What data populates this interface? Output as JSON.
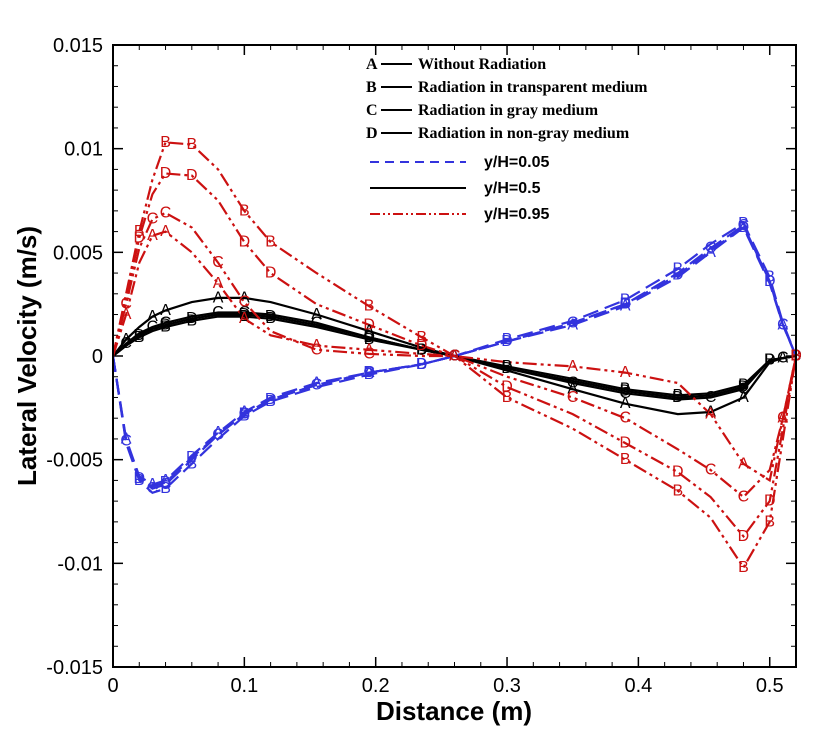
{
  "chart_data": {
    "type": "line",
    "xlabel": "Distance (m)",
    "ylabel": "Lateral Velocity (m/s)",
    "xlim": [
      0,
      0.52
    ],
    "ylim": [
      -0.015,
      0.015
    ],
    "x_ticks": [
      0,
      0.1,
      0.2,
      0.3,
      0.4,
      0.5
    ],
    "x_tick_labels": [
      "0",
      "0.1",
      "0.2",
      "0.3",
      "0.4",
      "0.5"
    ],
    "y_ticks": [
      -0.015,
      -0.01,
      -0.005,
      0,
      0.005,
      0.01,
      0.015
    ],
    "y_tick_labels": [
      "-0.015",
      "-0.01",
      "-0.005",
      "0",
      "0.005",
      "0.01",
      "0.015"
    ],
    "cases_legend": [
      {
        "marker": "A",
        "label": "Without Radiation"
      },
      {
        "marker": "B",
        "label": "Radiation in transparent medium"
      },
      {
        "marker": "C",
        "label": "Radiation in gray medium"
      },
      {
        "marker": "D",
        "label": "Radiation in non-gray medium"
      }
    ],
    "positions_legend": [
      {
        "label": "y/H=0.05",
        "color": "#3333dd",
        "dash": "dashed"
      },
      {
        "label": "y/H=0.5",
        "color": "#000000",
        "dash": "solid"
      },
      {
        "label": "y/H=0.95",
        "color": "#cc1111",
        "dash": "dashdotdot"
      }
    ],
    "x": [
      0,
      0.01,
      0.02,
      0.03,
      0.04,
      0.06,
      0.08,
      0.1,
      0.12,
      0.155,
      0.195,
      0.235,
      0.26,
      0.3,
      0.35,
      0.39,
      0.43,
      0.455,
      0.48,
      0.5,
      0.51,
      0.52
    ],
    "series": [
      {
        "group": "y/H=0.05",
        "name": "A",
        "values": [
          0,
          -0.004,
          -0.0058,
          -0.0062,
          -0.006,
          -0.0048,
          -0.0037,
          -0.0027,
          -0.002,
          -0.0013,
          -0.0008,
          -0.0004,
          0,
          0.0007,
          0.0015,
          0.0024,
          0.0038,
          0.005,
          0.0062,
          0.0035,
          0.0015,
          0
        ]
      },
      {
        "group": "y/H=0.05",
        "name": "B",
        "values": [
          0,
          -0.0042,
          -0.006,
          -0.0066,
          -0.0064,
          -0.0052,
          -0.004,
          -0.0029,
          -0.0022,
          -0.0015,
          -0.0009,
          -0.0004,
          0,
          0.0008,
          0.0017,
          0.0027,
          0.0042,
          0.0054,
          0.0064,
          0.0038,
          0.0016,
          0
        ]
      },
      {
        "group": "y/H=0.05",
        "name": "C",
        "values": [
          0,
          -0.0041,
          -0.0059,
          -0.0064,
          -0.0062,
          -0.005,
          -0.0038,
          -0.0028,
          -0.0021,
          -0.0014,
          -0.0008,
          -0.0004,
          0,
          0.0007,
          0.0016,
          0.0025,
          0.004,
          0.0052,
          0.0063,
          0.0036,
          0.0015,
          0
        ]
      },
      {
        "group": "y/H=0.05",
        "name": "D",
        "values": [
          0,
          -0.0041,
          -0.0059,
          -0.0063,
          -0.0061,
          -0.0049,
          -0.0038,
          -0.0028,
          -0.0021,
          -0.0014,
          -0.0008,
          -0.0004,
          0,
          0.0007,
          0.0016,
          0.0025,
          0.0039,
          0.0051,
          0.0062,
          0.0036,
          0.0015,
          0
        ]
      },
      {
        "group": "y/H=0.5",
        "name": "A",
        "values": [
          0,
          0.0008,
          0.0014,
          0.0019,
          0.0022,
          0.0026,
          0.0028,
          0.0028,
          0.0026,
          0.002,
          0.0012,
          0.0004,
          0,
          -0.0007,
          -0.0016,
          -0.0023,
          -0.0028,
          -0.0027,
          -0.002,
          -0.0003,
          -0.0001,
          0
        ]
      },
      {
        "group": "y/H=0.5",
        "name": "B",
        "values": [
          0,
          0.0005,
          0.0009,
          0.0012,
          0.0014,
          0.0017,
          0.0019,
          0.0019,
          0.0018,
          0.0014,
          0.0008,
          0.0003,
          0,
          -0.0005,
          -0.0011,
          -0.0016,
          -0.0019,
          -0.0018,
          -0.0014,
          -0.0002,
          -0.0001,
          0
        ]
      },
      {
        "group": "y/H=0.5",
        "name": "C",
        "values": [
          0,
          0.0006,
          0.0011,
          0.0014,
          0.0016,
          0.0019,
          0.0021,
          0.0021,
          0.002,
          0.0016,
          0.0009,
          0.0003,
          0,
          -0.0006,
          -0.0013,
          -0.0018,
          -0.0021,
          -0.002,
          -0.0016,
          -0.0002,
          -0.0001,
          0
        ]
      },
      {
        "group": "y/H=0.5",
        "name": "D",
        "values": [
          0,
          0.0005,
          0.001,
          0.0013,
          0.0015,
          0.0018,
          0.002,
          0.002,
          0.0019,
          0.0015,
          0.0009,
          0.0003,
          0,
          -0.0006,
          -0.0012,
          -0.0017,
          -0.002,
          -0.0019,
          -0.0015,
          -0.0002,
          -0.0001,
          0
        ]
      },
      {
        "group": "y/H=0.95",
        "name": "A",
        "values": [
          0,
          0.002,
          0.0045,
          0.0058,
          0.006,
          0.005,
          0.0035,
          0.0018,
          0.001,
          0.0005,
          0.0003,
          0.0001,
          0,
          -0.0003,
          -0.0005,
          -0.0008,
          -0.0013,
          -0.0028,
          -0.0052,
          -0.006,
          -0.003,
          0
        ]
      },
      {
        "group": "y/H=0.95",
        "name": "B",
        "values": [
          0,
          0.003,
          0.006,
          0.0085,
          0.0103,
          0.0102,
          0.009,
          0.007,
          0.0055,
          0.004,
          0.0024,
          0.0009,
          0,
          -0.002,
          -0.0035,
          -0.005,
          -0.0065,
          -0.0078,
          -0.0102,
          -0.008,
          -0.004,
          0
        ]
      },
      {
        "group": "y/H=0.95",
        "name": "C",
        "values": [
          0,
          0.0025,
          0.0052,
          0.0066,
          0.0069,
          0.0062,
          0.0045,
          0.0026,
          0.0012,
          0.0003,
          0.0001,
          0,
          0,
          -0.001,
          -0.002,
          -0.003,
          -0.0045,
          -0.0055,
          -0.0068,
          -0.0055,
          -0.003,
          0
        ]
      },
      {
        "group": "y/H=0.95",
        "name": "D",
        "values": [
          0,
          0.0028,
          0.0057,
          0.0078,
          0.0088,
          0.0087,
          0.0075,
          0.0055,
          0.004,
          0.0025,
          0.0015,
          0.0005,
          0,
          -0.0015,
          -0.0028,
          -0.0042,
          -0.0056,
          -0.0068,
          -0.0087,
          -0.007,
          -0.0035,
          0
        ]
      }
    ]
  }
}
